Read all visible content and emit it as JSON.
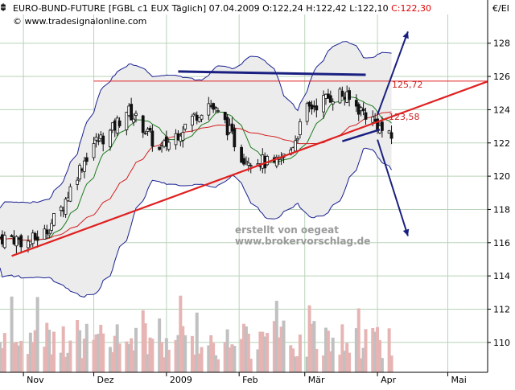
{
  "header": {
    "title_prefix": "EURO-BUND-FUTURE [FGBL c1 EUX  Täglich] 07.04.2009 ",
    "open_text": "O:122,24",
    "high_text": " H:122,42",
    "low_text": " L:122,10",
    "close_text": " C:122,30",
    "source": "© www.tradesignalonline.com",
    "currency": "€/EI"
  },
  "watermark": {
    "line1": "erstellt von oegeat",
    "line2": "www.brokervorschlag.de"
  },
  "colors": {
    "candle": "#111111",
    "bollinger": "#1a2290",
    "band_fill": "#ececec",
    "sma_fast": "#1d7a1d",
    "sma_slow": "#d42020",
    "trendline": "#e02020",
    "resistance": "#e02020",
    "drawings": "#1a2080",
    "volume": "#c0c0c0",
    "volume_red": "#e7b4b4",
    "grid": "#b9d3b9",
    "label_red": "#cc2222",
    "close_red": "#dd0000"
  },
  "chart_data": {
    "type": "candlestick",
    "ylim": [
      108.2,
      130.6
    ],
    "yticks": [
      110,
      112,
      114,
      116,
      118,
      120,
      122,
      124,
      126,
      128
    ],
    "ytick_labels": [
      "110",
      "112",
      "114",
      "116",
      "118",
      "120",
      "122",
      "124",
      "126",
      "128"
    ],
    "x_labels": [
      {
        "label": "Nov",
        "date": "2008-11-01"
      },
      {
        "label": "Dez",
        "date": "2008-12-01"
      },
      {
        "label": "2009",
        "date": "2009-01-01"
      },
      {
        "label": "Feb",
        "date": "2009-02-01"
      },
      {
        "label": "Mär",
        "date": "2009-03-01"
      },
      {
        "label": "Apr",
        "date": "2009-04-01"
      },
      {
        "label": "Mai",
        "date": "2009-05-01"
      }
    ],
    "x_range": [
      "2008-10-22",
      "2009-05-18"
    ],
    "series": [
      {
        "points": [
          [
            "2008-10-27",
            116.3
          ],
          [
            "2008-11-03",
            116.0
          ],
          [
            "2008-11-10",
            116.6
          ],
          [
            "2008-11-17",
            118.0
          ],
          [
            "2008-11-24",
            120.2
          ],
          [
            "2008-12-01",
            122.0
          ],
          [
            "2008-12-08",
            122.6
          ],
          [
            "2008-12-15",
            124.0
          ],
          [
            "2008-12-22",
            123.0
          ],
          [
            "2008-12-29",
            121.5
          ],
          [
            "2009-01-05",
            122.5
          ],
          [
            "2009-01-12",
            123.5
          ],
          [
            "2009-01-19",
            124.4
          ],
          [
            "2009-01-26",
            123.2
          ],
          [
            "2009-02-02",
            121.2
          ],
          [
            "2009-02-09",
            121.0
          ],
          [
            "2009-02-16",
            120.6
          ],
          [
            "2009-02-23",
            121.6
          ],
          [
            "2009-03-02",
            124.0
          ],
          [
            "2009-03-09",
            124.6
          ],
          [
            "2009-03-16",
            125.0
          ],
          [
            "2009-03-23",
            124.2
          ],
          [
            "2009-03-30",
            123.4
          ],
          [
            "2009-04-06",
            122.3
          ]
        ]
      }
    ],
    "annotations": [
      {
        "type": "label",
        "text": "125,72",
        "value": 125.72
      },
      {
        "type": "label",
        "text": "123,58",
        "value": 123.58
      }
    ],
    "volume_ylim": [
      0,
      10
    ]
  }
}
